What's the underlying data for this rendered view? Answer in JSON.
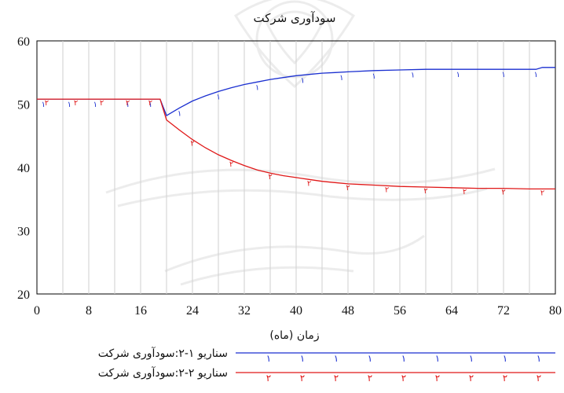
{
  "chart_data": {
    "type": "line",
    "title": "سودآوری شرکت",
    "xlabel": "زمان (ماه)",
    "ylabel": "",
    "xlim": [
      0,
      80
    ],
    "ylim": [
      20,
      60
    ],
    "x_ticks": [
      0,
      8,
      16,
      24,
      32,
      40,
      48,
      56,
      64,
      72,
      80
    ],
    "y_ticks": [
      20,
      30,
      40,
      50,
      60
    ],
    "grid": "vertical",
    "legend_position": "bottom",
    "series": [
      {
        "name": "سناریو ۱-۲:سودآوری شرکت",
        "marker": "۱",
        "color": "#1a2fd0",
        "x": [
          0,
          19,
          20,
          22,
          24,
          26,
          28,
          30,
          32,
          34,
          36,
          38,
          40,
          42,
          44,
          46,
          48,
          52,
          56,
          60,
          64,
          68,
          72,
          76,
          77,
          78,
          80
        ],
        "y": [
          50.8,
          50.8,
          48.2,
          49.4,
          50.5,
          51.3,
          52.0,
          52.6,
          53.1,
          53.5,
          53.9,
          54.2,
          54.5,
          54.7,
          54.9,
          55.0,
          55.1,
          55.3,
          55.4,
          55.5,
          55.5,
          55.5,
          55.5,
          55.5,
          55.5,
          55.8,
          55.8
        ]
      },
      {
        "name": "سناریو ۲-۲:سودآوری شرکت",
        "marker": "۲",
        "color": "#e01818",
        "x": [
          0,
          19,
          20,
          22,
          24,
          26,
          28,
          30,
          32,
          34,
          36,
          38,
          40,
          42,
          44,
          46,
          48,
          50,
          52,
          56,
          60,
          64,
          68,
          72,
          76,
          80
        ],
        "y": [
          50.8,
          50.8,
          47.5,
          45.9,
          44.4,
          43.1,
          42.0,
          41.1,
          40.3,
          39.6,
          39.1,
          38.7,
          38.4,
          38.1,
          37.8,
          37.6,
          37.4,
          37.3,
          37.2,
          37.0,
          36.9,
          36.8,
          36.7,
          36.7,
          36.6,
          36.6
        ]
      }
    ],
    "series_markers": {
      "s1_x": [
        1,
        5,
        9,
        14,
        17.5,
        22,
        28,
        34,
        41,
        47,
        52,
        58,
        65,
        72,
        77
      ],
      "s2_x": [
        1.5,
        6,
        10,
        14,
        17.5,
        24,
        30,
        36,
        42,
        48,
        54,
        60,
        66,
        72,
        78
      ]
    }
  }
}
